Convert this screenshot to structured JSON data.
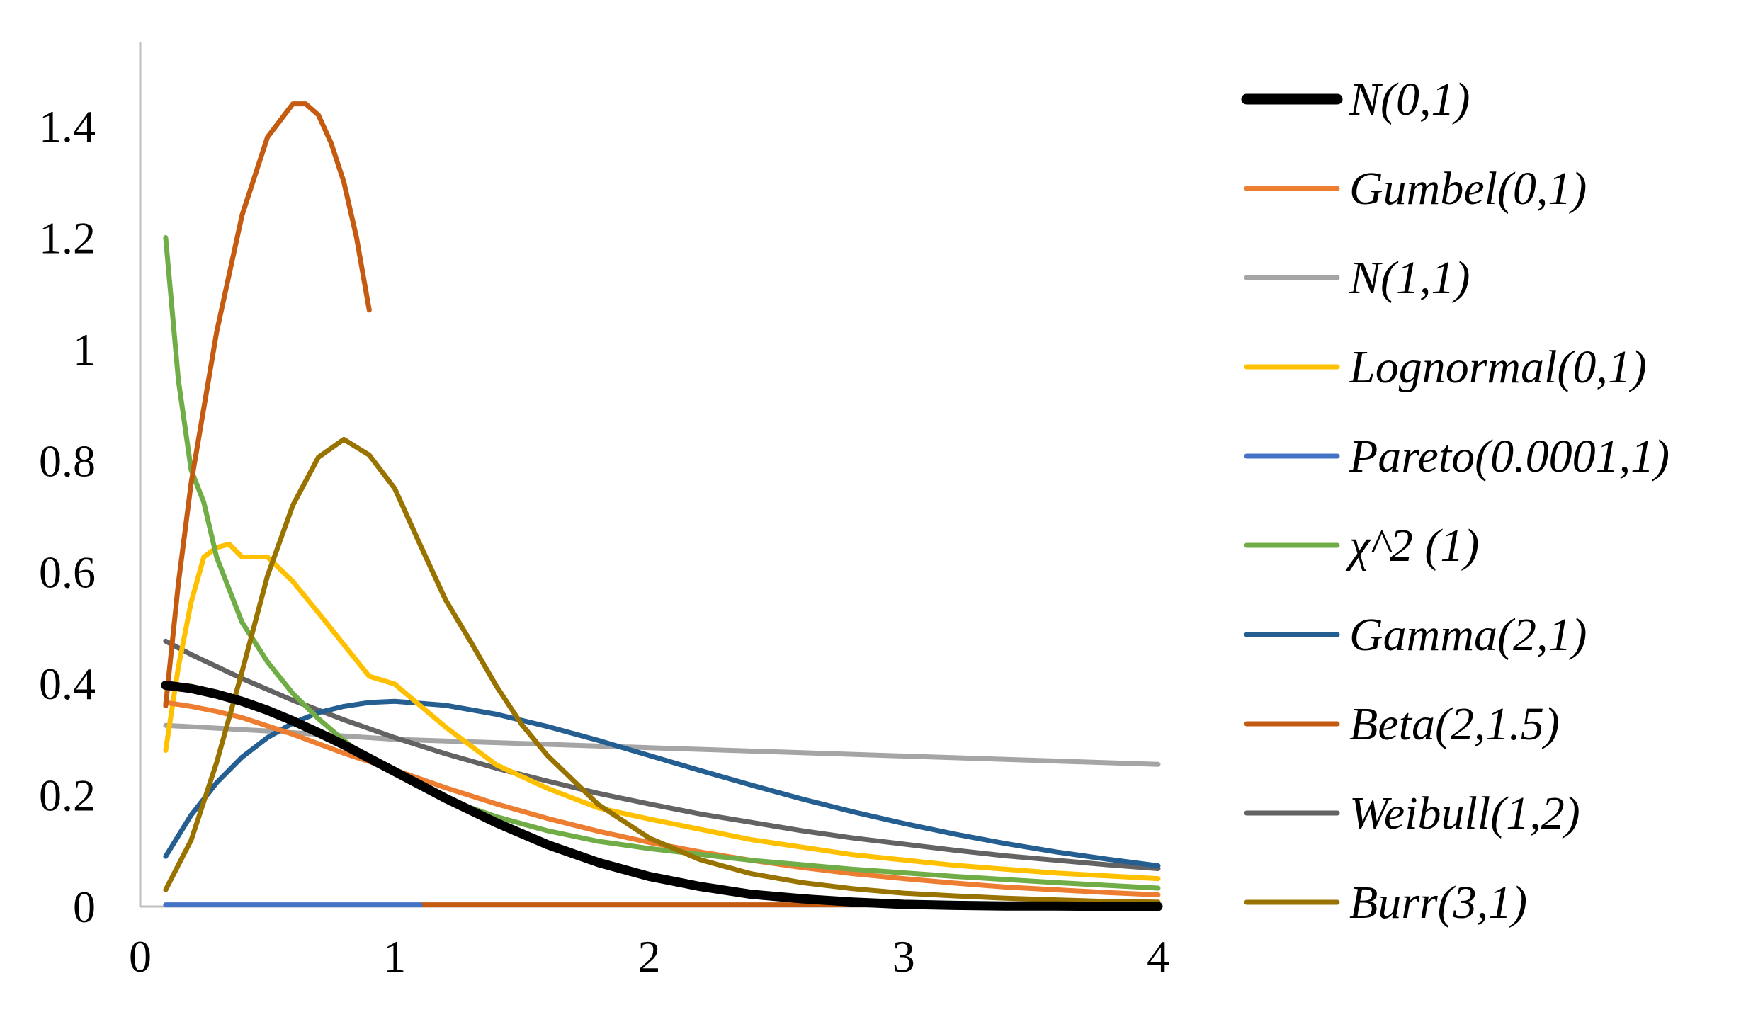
{
  "chart_data": {
    "type": "line",
    "title": "",
    "xlabel": "",
    "ylabel": "",
    "xlim": [
      0,
      4
    ],
    "ylim": [
      0,
      1.55
    ],
    "x_ticks": [
      0,
      1,
      2,
      3,
      4
    ],
    "x_tick_labels": [
      "0",
      "1",
      "2",
      "3",
      "4"
    ],
    "y_ticks": [
      0,
      0.2,
      0.4,
      0.6,
      0.8,
      1,
      1.2,
      1.4
    ],
    "y_tick_labels": [
      "0",
      "0.2",
      "0.4",
      "0.6",
      "0.8",
      "1",
      "1.2",
      "1.4"
    ],
    "grid": false,
    "legend_position": "right",
    "series": [
      {
        "name": "N(0,1)",
        "color": "#000000",
        "width": 13,
        "x": [
          0.1,
          0.2,
          0.3,
          0.4,
          0.5,
          0.6,
          0.7,
          0.8,
          0.9,
          1.0,
          1.2,
          1.4,
          1.6,
          1.8,
          2.0,
          2.2,
          2.4,
          2.6,
          2.8,
          3.0,
          3.2,
          3.4,
          3.6,
          3.8,
          4.0
        ],
        "y": [
          0.397,
          0.391,
          0.381,
          0.368,
          0.352,
          0.333,
          0.312,
          0.29,
          0.266,
          0.242,
          0.194,
          0.15,
          0.111,
          0.079,
          0.054,
          0.036,
          0.022,
          0.014,
          0.008,
          0.004,
          0.002,
          0.001,
          0.001,
          0.0003,
          0.0001
        ]
      },
      {
        "name": "Gumbel(0,1)",
        "color": "#ED7D31",
        "width": 7,
        "x": [
          0.1,
          0.2,
          0.3,
          0.4,
          0.5,
          0.6,
          0.8,
          1.0,
          1.2,
          1.4,
          1.6,
          1.8,
          2.0,
          2.2,
          2.4,
          2.6,
          2.8,
          3.0,
          3.2,
          3.4,
          3.6,
          3.8,
          4.0
        ],
        "y": [
          0.366,
          0.359,
          0.35,
          0.339,
          0.324,
          0.309,
          0.275,
          0.245,
          0.213,
          0.184,
          0.158,
          0.135,
          0.115,
          0.098,
          0.083,
          0.07,
          0.059,
          0.05,
          0.042,
          0.035,
          0.03,
          0.025,
          0.021
        ]
      },
      {
        "name": "N(1,1)",
        "color": "#A5A5A5",
        "width": 7,
        "x": [
          0.1,
          0.5,
          1.0,
          2.0,
          3.0,
          4.0
        ],
        "y": [
          0.325,
          0.315,
          0.3,
          0.285,
          0.27,
          0.255
        ]
      },
      {
        "name": "Lognormal(0,1)",
        "color": "#FFC000",
        "width": 7,
        "x": [
          0.1,
          0.15,
          0.2,
          0.25,
          0.3,
          0.35,
          0.4,
          0.5,
          0.6,
          0.7,
          0.8,
          0.9,
          1.0,
          1.2,
          1.4,
          1.6,
          1.8,
          2.0,
          2.4,
          2.8,
          3.2,
          3.6,
          4.0
        ],
        "y": [
          0.28,
          0.43,
          0.546,
          0.627,
          0.644,
          0.65,
          0.627,
          0.627,
          0.583,
          0.527,
          0.47,
          0.413,
          0.399,
          0.322,
          0.254,
          0.212,
          0.177,
          0.157,
          0.12,
          0.093,
          0.074,
          0.06,
          0.05
        ]
      },
      {
        "name": "Pareto(0.0001,1)",
        "color": "#4472C4",
        "width": 7,
        "x": [
          0.1,
          1.1
        ],
        "y": [
          0.003,
          0.003
        ]
      },
      {
        "name": "χ^2 (1)",
        "color": "#70AD47",
        "width": 7,
        "x": [
          0.1,
          0.15,
          0.2,
          0.25,
          0.3,
          0.4,
          0.5,
          0.6,
          0.7,
          0.8,
          0.9,
          1.0,
          1.2,
          1.4,
          1.6,
          1.8,
          2.0,
          2.4,
          2.8,
          3.2,
          3.6,
          4.0
        ],
        "y": [
          1.2,
          0.944,
          0.783,
          0.725,
          0.627,
          0.51,
          0.439,
          0.382,
          0.337,
          0.298,
          0.264,
          0.242,
          0.193,
          0.161,
          0.136,
          0.117,
          0.104,
          0.083,
          0.067,
          0.054,
          0.043,
          0.033
        ]
      },
      {
        "name": "Gamma(2,1)",
        "color": "#255E91",
        "width": 7,
        "x": [
          0.1,
          0.2,
          0.3,
          0.4,
          0.5,
          0.6,
          0.7,
          0.8,
          0.9,
          1.0,
          1.2,
          1.4,
          1.6,
          1.8,
          2.0,
          2.2,
          2.4,
          2.6,
          2.8,
          3.0,
          3.2,
          3.4,
          3.6,
          3.8,
          4.0
        ],
        "y": [
          0.09,
          0.164,
          0.222,
          0.268,
          0.303,
          0.329,
          0.348,
          0.359,
          0.366,
          0.368,
          0.361,
          0.345,
          0.323,
          0.298,
          0.271,
          0.244,
          0.218,
          0.193,
          0.17,
          0.149,
          0.13,
          0.113,
          0.098,
          0.085,
          0.073
        ]
      },
      {
        "name": "Beta(2,1.5)",
        "color": "#C55A11",
        "width": 7,
        "x": [
          0.1,
          0.15,
          0.2,
          0.3,
          0.4,
          0.5,
          0.6,
          0.65,
          0.7,
          0.75,
          0.8,
          0.85,
          0.9
        ],
        "y": [
          0.36,
          0.58,
          0.76,
          1.03,
          1.24,
          1.38,
          1.44,
          1.44,
          1.42,
          1.37,
          1.3,
          1.2,
          1.07
        ],
        "tail_x": [
          1.1,
          4.0
        ],
        "tail_y": [
          0.003,
          0.003
        ]
      },
      {
        "name": "Weibull(1,2)",
        "color": "#636363",
        "width": 7,
        "x": [
          0.1,
          0.2,
          0.4,
          0.6,
          0.8,
          1.0,
          1.2,
          1.4,
          1.6,
          1.8,
          2.0,
          2.2,
          2.4,
          2.6,
          2.8,
          3.0,
          3.2,
          3.4,
          3.6,
          3.8,
          4.0
        ],
        "y": [
          0.476,
          0.452,
          0.409,
          0.37,
          0.335,
          0.303,
          0.274,
          0.248,
          0.225,
          0.203,
          0.184,
          0.166,
          0.151,
          0.136,
          0.123,
          0.112,
          0.101,
          0.091,
          0.083,
          0.075,
          0.068
        ]
      },
      {
        "name": "Burr(3,1)",
        "color": "#997300",
        "width": 7,
        "x": [
          0.1,
          0.2,
          0.3,
          0.4,
          0.5,
          0.6,
          0.7,
          0.8,
          0.9,
          1.0,
          1.1,
          1.2,
          1.3,
          1.4,
          1.5,
          1.6,
          1.8,
          2.0,
          2.2,
          2.4,
          2.6,
          2.8,
          3.0,
          3.2,
          3.4,
          3.6,
          3.8,
          4.0
        ],
        "y": [
          0.03,
          0.119,
          0.258,
          0.421,
          0.593,
          0.72,
          0.806,
          0.838,
          0.81,
          0.75,
          0.649,
          0.55,
          0.474,
          0.395,
          0.326,
          0.271,
          0.183,
          0.123,
          0.084,
          0.059,
          0.043,
          0.032,
          0.024,
          0.019,
          0.015,
          0.012,
          0.009,
          0.008
        ]
      }
    ]
  }
}
